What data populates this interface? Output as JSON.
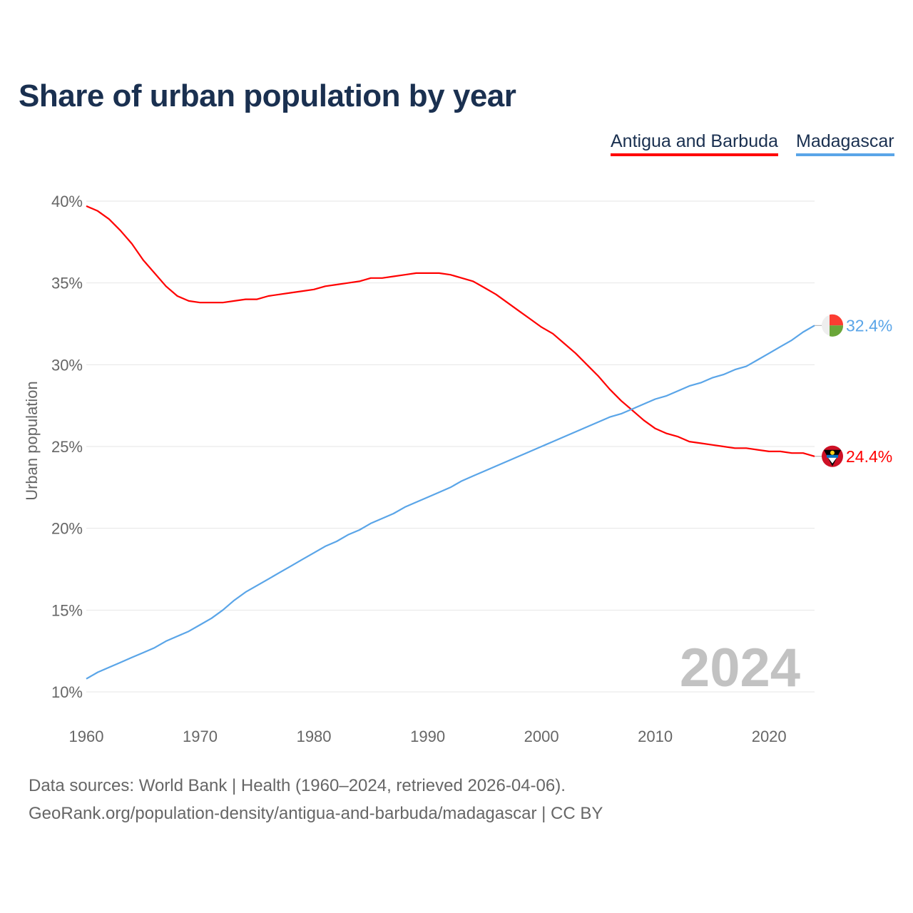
{
  "title": "Share of urban population by year",
  "legend": [
    {
      "label": "Antigua and Barbuda",
      "color": "#ff0000"
    },
    {
      "label": "Madagascar",
      "color": "#5aa5e8"
    }
  ],
  "current_year": "2024",
  "footer": {
    "line1": "Data sources: World Bank | Health (1960–2024, retrieved 2026-04-06).",
    "line2": "GeoRank.org/population-density/antigua-and-barbuda/madagascar | CC BY"
  },
  "chart_data": {
    "type": "line",
    "title": "Share of urban population by year",
    "xlabel": "",
    "ylabel": "Urban population",
    "xlim": [
      1960,
      2024
    ],
    "ylim": [
      10,
      40
    ],
    "x_ticks": [
      1960,
      1970,
      1980,
      1990,
      2000,
      2010,
      2020
    ],
    "y_ticks": [
      10,
      15,
      20,
      25,
      30,
      35,
      40
    ],
    "y_tick_labels": [
      "10%",
      "15%",
      "20%",
      "25%",
      "30%",
      "35%",
      "40%"
    ],
    "grid": true,
    "legend_position": "top-right",
    "x_start": 1960,
    "series": [
      {
        "name": "Antigua and Barbuda",
        "color": "#ff0000",
        "end_label": "24.4%",
        "values": [
          39.7,
          39.4,
          38.9,
          38.2,
          37.4,
          36.4,
          35.6,
          34.8,
          34.2,
          33.9,
          33.8,
          33.8,
          33.8,
          33.9,
          34.0,
          34.0,
          34.2,
          34.3,
          34.4,
          34.5,
          34.6,
          34.8,
          34.9,
          35.0,
          35.1,
          35.3,
          35.3,
          35.4,
          35.5,
          35.6,
          35.6,
          35.6,
          35.5,
          35.3,
          35.1,
          34.7,
          34.3,
          33.8,
          33.3,
          32.8,
          32.3,
          31.9,
          31.3,
          30.7,
          30.0,
          29.3,
          28.5,
          27.8,
          27.2,
          26.6,
          26.1,
          25.8,
          25.6,
          25.3,
          25.2,
          25.1,
          25.0,
          24.9,
          24.9,
          24.8,
          24.7,
          24.7,
          24.6,
          24.6,
          24.4
        ]
      },
      {
        "name": "Madagascar",
        "color": "#5aa5e8",
        "end_label": "32.4%",
        "values": [
          10.8,
          11.2,
          11.5,
          11.8,
          12.1,
          12.4,
          12.7,
          13.1,
          13.4,
          13.7,
          14.1,
          14.5,
          15.0,
          15.6,
          16.1,
          16.5,
          16.9,
          17.3,
          17.7,
          18.1,
          18.5,
          18.9,
          19.2,
          19.6,
          19.9,
          20.3,
          20.6,
          20.9,
          21.3,
          21.6,
          21.9,
          22.2,
          22.5,
          22.9,
          23.2,
          23.5,
          23.8,
          24.1,
          24.4,
          24.7,
          25.0,
          25.3,
          25.6,
          25.9,
          26.2,
          26.5,
          26.8,
          27.0,
          27.3,
          27.6,
          27.9,
          28.1,
          28.4,
          28.7,
          28.9,
          29.2,
          29.4,
          29.7,
          29.9,
          30.3,
          30.7,
          31.1,
          31.5,
          32.0,
          32.4
        ]
      }
    ]
  }
}
